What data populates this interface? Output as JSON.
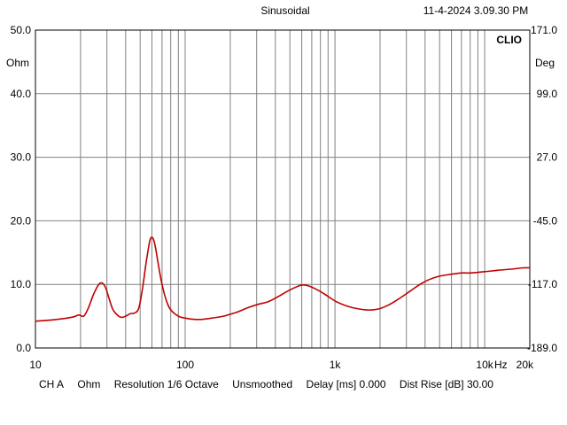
{
  "header": {
    "mode": "Sinusoidal",
    "timestamp": "11-4-2024 3.09.30 PM"
  },
  "brand": "CLIO",
  "status_bar": {
    "channel": "CH A",
    "unit": "Ohm",
    "resolution": "Resolution 1/6 Octave",
    "smoothing": "Unsmoothed",
    "delay": "Delay [ms] 0.000",
    "dist_rise": "Dist Rise [dB] 30.00"
  },
  "colors": {
    "trace": "#c00000",
    "grid": "#808080",
    "frame": "#000000"
  },
  "chart_data": {
    "type": "line",
    "x_scale": "log",
    "xlim": [
      10,
      20000
    ],
    "ylim": [
      0,
      50
    ],
    "y2lim": [
      -189,
      171
    ],
    "grid": true,
    "y_unit_label": "Ohm",
    "y2_unit_label": "Deg",
    "x_unit_label": "Hz",
    "x_tick_labels": [
      {
        "value": 10,
        "label": "10"
      },
      {
        "value": 100,
        "label": "100"
      },
      {
        "value": 1000,
        "label": "1k"
      },
      {
        "value": 10000,
        "label": "10k"
      },
      {
        "value": 20000,
        "label": "20k"
      }
    ],
    "y_tick_labels": [
      {
        "value": 0,
        "label": "0.0"
      },
      {
        "value": 10,
        "label": "10.0"
      },
      {
        "value": 20,
        "label": "20.0"
      },
      {
        "value": 30,
        "label": "30.0"
      },
      {
        "value": 40,
        "label": "40.0"
      },
      {
        "value": 50,
        "label": "50.0"
      }
    ],
    "y2_tick_labels": [
      {
        "value": -189,
        "label": "-189.0"
      },
      {
        "value": -117,
        "label": "-117.0"
      },
      {
        "value": -45,
        "label": "-45.0"
      },
      {
        "value": 27,
        "label": "27.0"
      },
      {
        "value": 99,
        "label": "99.0"
      },
      {
        "value": 171,
        "label": "171.0"
      }
    ],
    "series": [
      {
        "x": [
          10,
          14,
          18,
          19.5,
          21,
          22.5,
          24.5,
          26.5,
          28,
          29.5,
          31,
          33,
          36,
          38,
          40,
          43,
          46,
          49,
          52,
          55,
          58,
          60,
          62,
          64,
          66,
          70,
          75,
          80,
          90,
          100,
          115,
          130,
          150,
          180,
          220,
          260,
          300,
          360,
          420,
          480,
          540,
          600,
          660,
          740,
          850,
          1000,
          1200,
          1400,
          1600,
          1800,
          2000,
          2300,
          2700,
          3200,
          3700,
          4200,
          5000,
          6000,
          7000,
          8000,
          10000,
          12000,
          15000,
          18000,
          20000
        ],
        "y": [
          4.2,
          4.5,
          4.9,
          5.2,
          5.0,
          6.2,
          8.5,
          10.0,
          10.2,
          9.4,
          7.8,
          6.0,
          5.0,
          4.8,
          5.0,
          5.4,
          5.5,
          6.3,
          9.5,
          13.6,
          16.8,
          17.4,
          16.8,
          15.2,
          13.3,
          10.0,
          7.4,
          6.0,
          5.0,
          4.7,
          4.5,
          4.5,
          4.7,
          5.0,
          5.6,
          6.3,
          6.8,
          7.3,
          8.1,
          8.9,
          9.5,
          9.9,
          9.8,
          9.3,
          8.5,
          7.4,
          6.6,
          6.2,
          6.0,
          6.0,
          6.2,
          6.8,
          7.8,
          9.0,
          10.0,
          10.7,
          11.3,
          11.6,
          11.8,
          11.8,
          12.0,
          12.2,
          12.4,
          12.6,
          12.6
        ]
      }
    ]
  }
}
